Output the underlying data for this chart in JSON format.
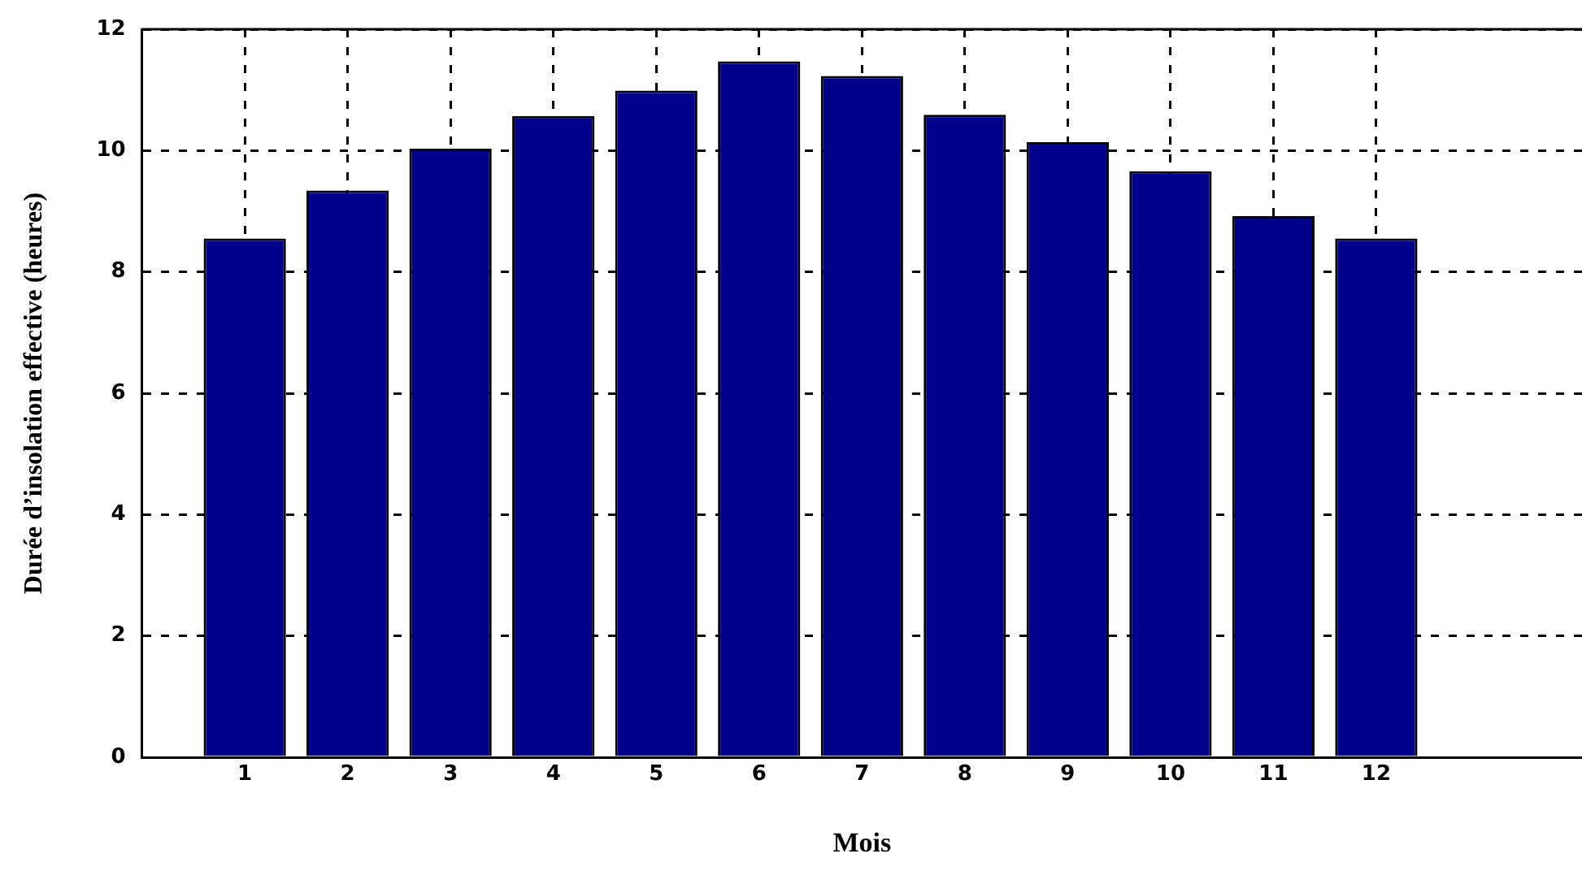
{
  "chart_data": {
    "type": "bar",
    "xlabel": "Mois",
    "ylabel": "Durée d’insolation effective (heures)",
    "x": [
      1,
      2,
      3,
      4,
      5,
      6,
      7,
      8,
      9,
      10,
      11,
      12
    ],
    "values": [
      8.55,
      9.34,
      10.03,
      10.57,
      10.99,
      11.47,
      11.23,
      10.59,
      10.14,
      9.66,
      8.92,
      8.55
    ],
    "color": "#00008b",
    "xlim": [
      0,
      14
    ],
    "xticks": [
      1,
      2,
      3,
      4,
      5,
      6,
      7,
      8,
      9,
      10,
      11,
      12
    ],
    "ylim": [
      0,
      12
    ],
    "yticks": [
      0,
      2,
      4,
      6,
      8,
      10,
      12
    ],
    "grid": true
  }
}
